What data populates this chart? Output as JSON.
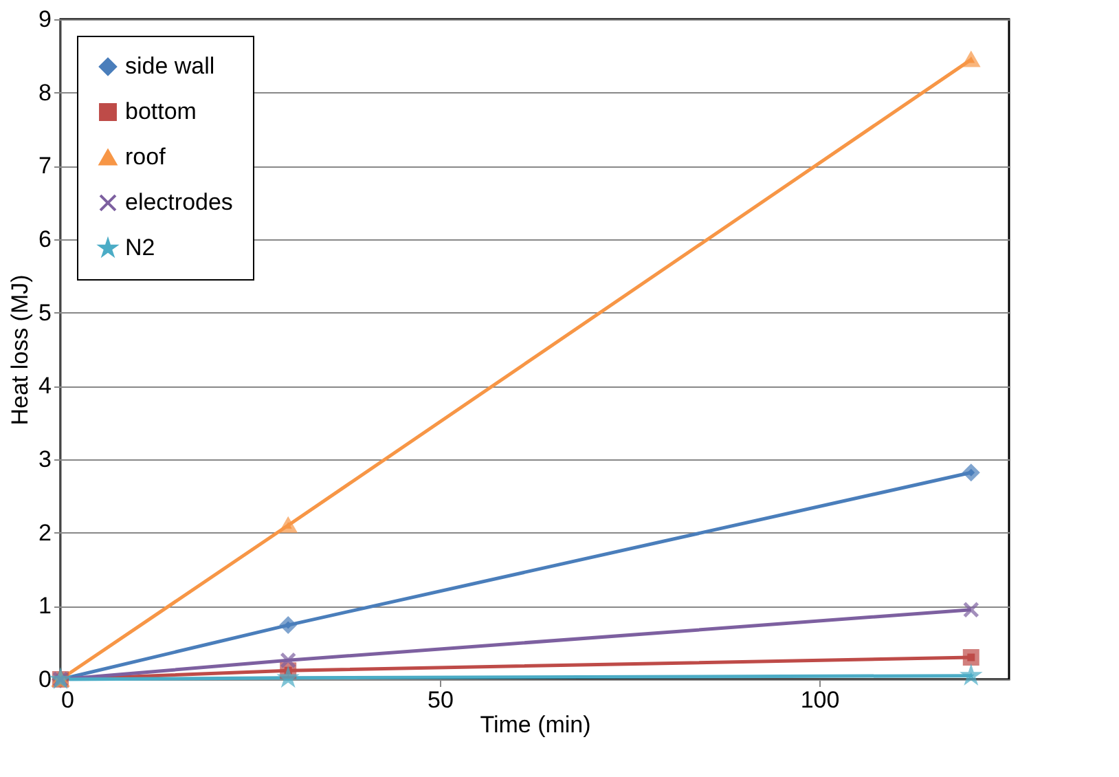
{
  "chart_data": {
    "type": "line",
    "xlabel": "Time (min)",
    "ylabel": "Heat loss (MJ)",
    "x": [
      0,
      30,
      120
    ],
    "xlim": [
      0,
      125
    ],
    "xticks": [
      0,
      50,
      100
    ],
    "ylim": [
      0,
      9
    ],
    "yticks": [
      0,
      1,
      2,
      3,
      4,
      5,
      6,
      7,
      8,
      9
    ],
    "grid": "y",
    "legend": "top left",
    "series": [
      {
        "name": "side wall",
        "color": "#4a7ebb",
        "marker": "diamond",
        "values": [
          0,
          0.74,
          2.82
        ]
      },
      {
        "name": "bottom",
        "color": "#be4b48",
        "marker": "square",
        "values": [
          0,
          0.12,
          0.3
        ]
      },
      {
        "name": "roof",
        "color": "#f79646",
        "marker": "triangle",
        "values": [
          0,
          2.1,
          8.45
        ]
      },
      {
        "name": "electrodes",
        "color": "#7d60a0",
        "marker": "cross",
        "values": [
          0,
          0.26,
          0.95
        ]
      },
      {
        "name": "N2",
        "color": "#4bacc6",
        "marker": "star",
        "values": [
          0,
          0.02,
          0.05
        ]
      }
    ]
  }
}
